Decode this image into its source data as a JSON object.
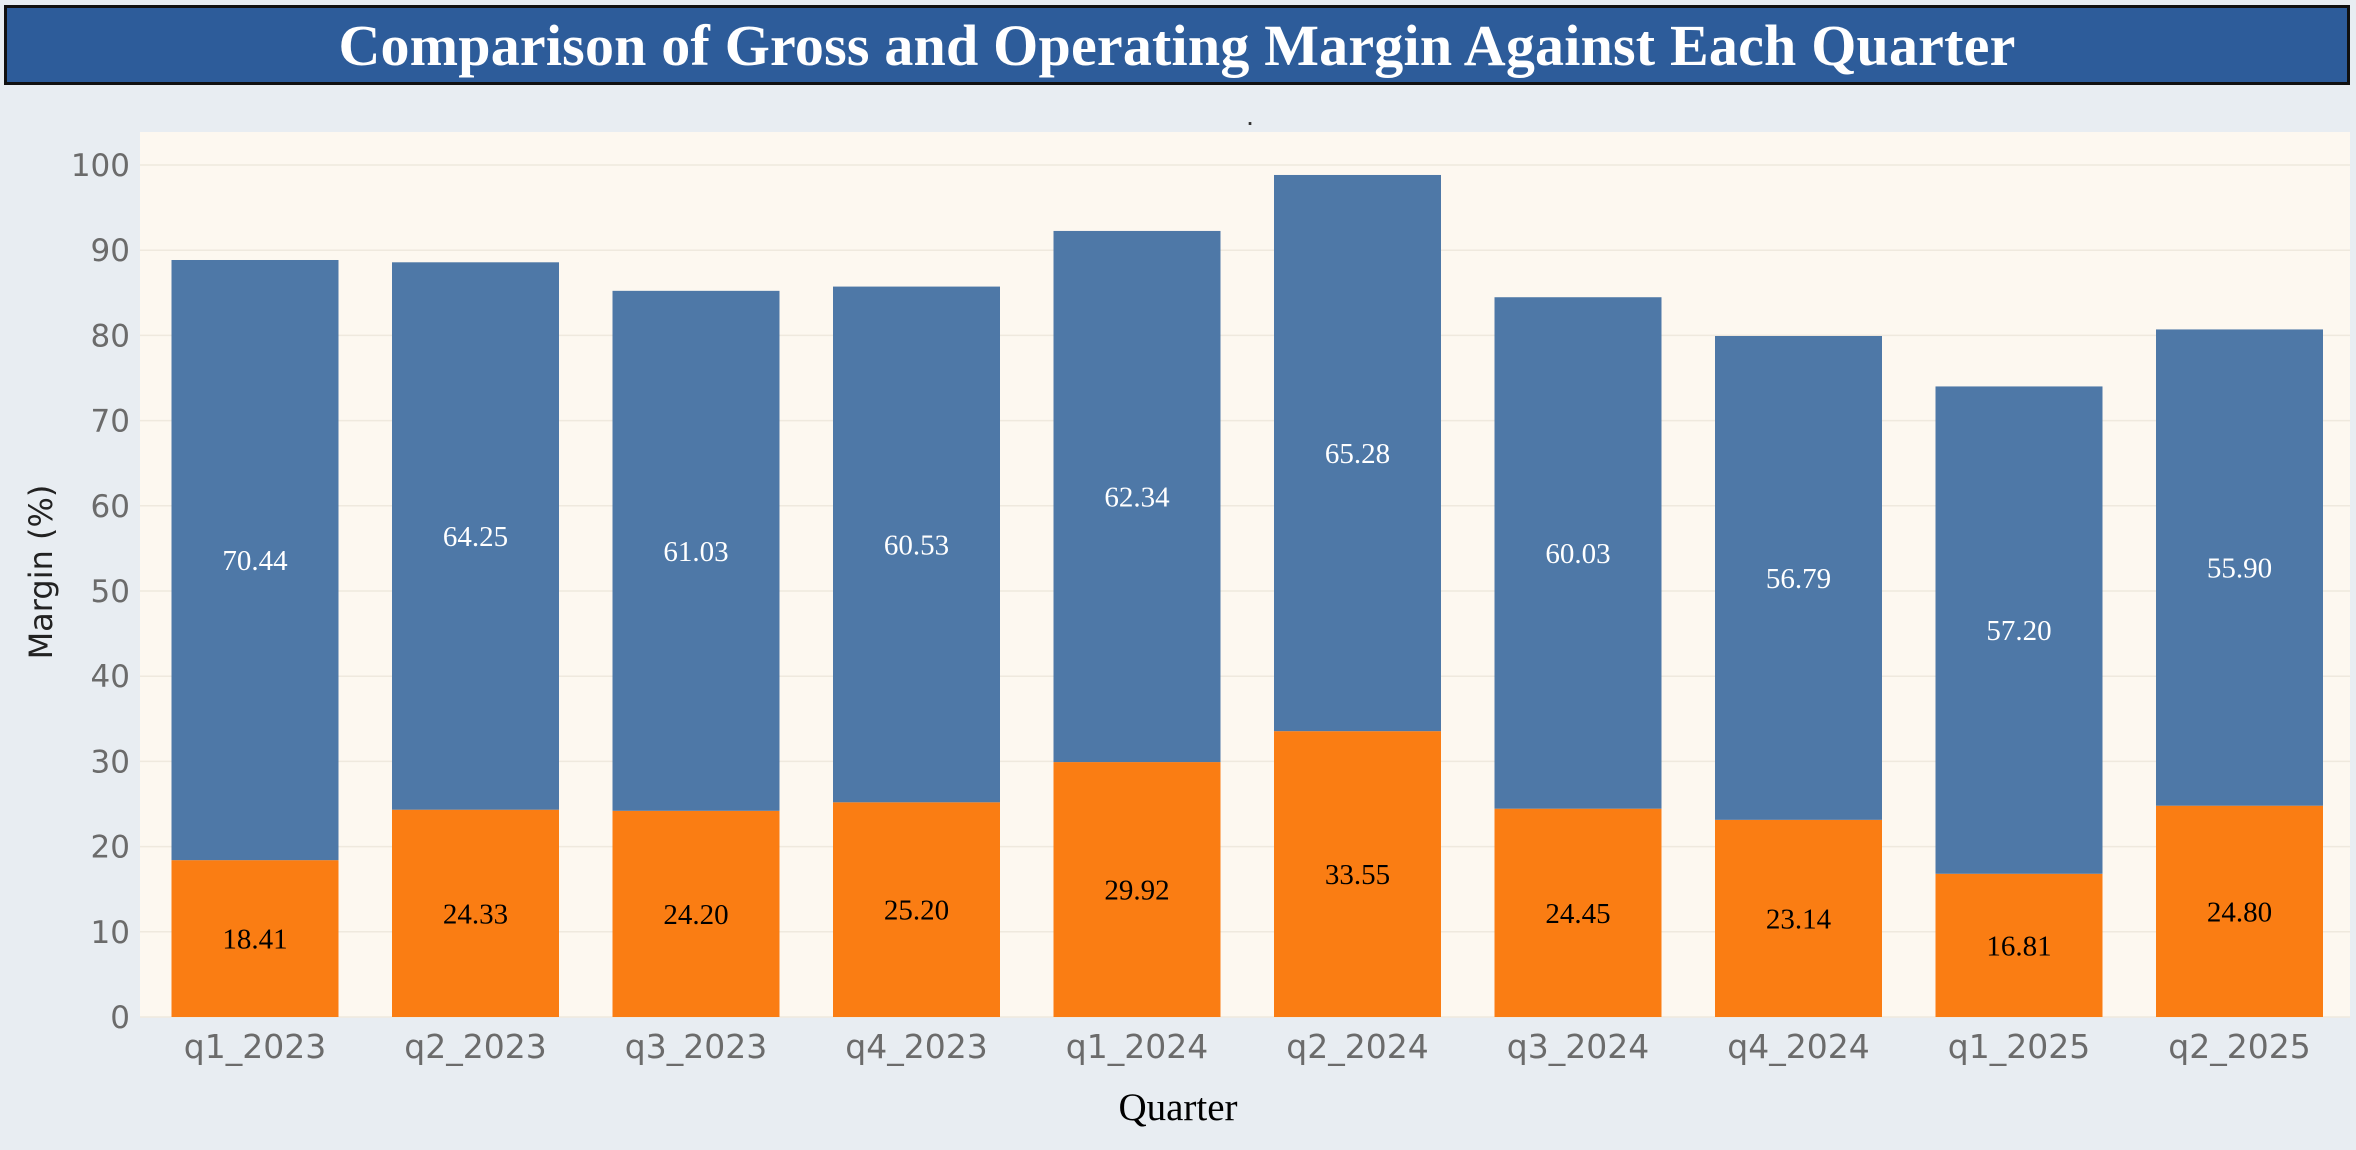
{
  "page": {
    "title": "Comparison of Gross and Operating Margin Against Each Quarter",
    "subtitle": "."
  },
  "colors": {
    "title_bg": "#2d5c9a",
    "page_bg": "#e8edf2",
    "plot_bg": "#fdf8f0",
    "gross": "#4e78a7",
    "operating": "#fa7d13"
  },
  "chart_data": {
    "type": "bar",
    "stacked": true,
    "categories": [
      "q1_2023",
      "q2_2023",
      "q3_2023",
      "q4_2023",
      "q1_2024",
      "q2_2024",
      "q3_2024",
      "q4_2024",
      "q1_2025",
      "q2_2025"
    ],
    "series": [
      {
        "values": [
          18.41,
          24.33,
          24.2,
          25.2,
          29.92,
          33.55,
          24.45,
          23.14,
          16.81,
          24.8
        ],
        "color": "#fa7d13"
      },
      {
        "values": [
          70.44,
          64.25,
          61.03,
          60.53,
          62.34,
          65.28,
          60.03,
          56.79,
          57.2,
          55.9
        ],
        "color": "#4e78a7"
      }
    ],
    "data_labels": {
      "operating": [
        "18.41",
        "24.33",
        "24.20",
        "25.20",
        "29.92",
        "33.55",
        "24.45",
        "23.14",
        "16.81",
        "24.80"
      ],
      "gross": [
        "70.44",
        "64.25",
        "61.03",
        "60.53",
        "62.34",
        "65.28",
        "60.03",
        "56.79",
        "57.20",
        "55.90"
      ]
    },
    "xlabel": "Quarter",
    "ylabel": "Margin (%)",
    "yticks": [
      "0",
      "10",
      "20",
      "30",
      "40",
      "50",
      "60",
      "70",
      "80",
      "90",
      "100"
    ],
    "ylim": [
      0,
      100
    ],
    "grid": true,
    "legend": "none"
  }
}
